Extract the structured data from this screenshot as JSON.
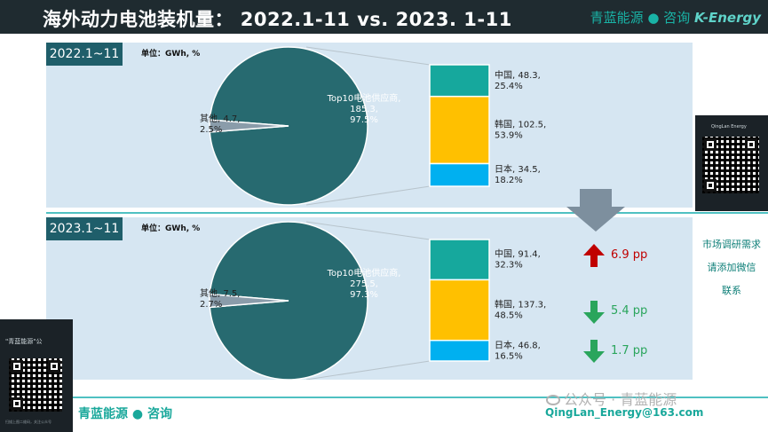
{
  "header": {
    "title": "海外动力电池装机量：  2022.1-11 vs. 2023. 1-11",
    "brand": "青蓝能源 ● 咨询",
    "brand_logo": "K-Energy"
  },
  "chart_data": [
    {
      "type": "pie",
      "period_label": "2022.1~11",
      "unit_note": "单位：GWh, %",
      "slices": [
        {
          "label_line1": "Top10电池供应商,",
          "label_line2": "185.3,",
          "label_line3": "97.5%",
          "value": 185.3,
          "share": 97.5,
          "color": "#276a70"
        },
        {
          "label_line1": "其他, 4.7,",
          "label_line2": "2.5%",
          "value": 4.7,
          "share": 2.5,
          "color": "#8a9caa"
        }
      ],
      "breakdown": [
        {
          "label_line1": "中国, 48.3,",
          "label_line2": "25.4%",
          "value": 48.3,
          "share": 25.4,
          "color": "#16a89d"
        },
        {
          "label_line1": "韩国, 102.5,",
          "label_line2": "53.9%",
          "value": 102.5,
          "share": 53.9,
          "color": "#ffc000"
        },
        {
          "label_line1": "日本, 34.5,",
          "label_line2": "18.2%",
          "value": 34.5,
          "share": 18.2,
          "color": "#00b0f0"
        }
      ]
    },
    {
      "type": "pie",
      "period_label": "2023.1~11",
      "unit_note": "单位：GWh, %",
      "slices": [
        {
          "label_line1": "Top10电池供应商,",
          "label_line2": "275.5,",
          "label_line3": "97.3%",
          "value": 275.5,
          "share": 97.3,
          "color": "#276a70"
        },
        {
          "label_line1": "其他, 7.5,",
          "label_line2": "2.7%",
          "value": 7.5,
          "share": 2.7,
          "color": "#8a9caa"
        }
      ],
      "breakdown": [
        {
          "label_line1": "中国, 91.4,",
          "label_line2": "32.3%",
          "value": 91.4,
          "share": 32.3,
          "color": "#16a89d"
        },
        {
          "label_line1": "韩国, 137.3,",
          "label_line2": "48.5%",
          "value": 137.3,
          "share": 48.5,
          "color": "#ffc000"
        },
        {
          "label_line1": "日本, 46.8,",
          "label_line2": "16.5%",
          "value": 46.8,
          "share": 16.5,
          "color": "#00b0f0"
        }
      ]
    }
  ],
  "changes": [
    {
      "direction": "up",
      "text": "6.9 pp"
    },
    {
      "direction": "down",
      "text": "5.4 pp"
    },
    {
      "direction": "down",
      "text": "1.7 pp"
    }
  ],
  "sidebar": {
    "qr_title": "QingLan Energy",
    "line1": "市场调研需求",
    "line2": "请添加微信",
    "line3": "联系"
  },
  "footer": {
    "qr_title": "\"青蓝能源\"公",
    "qr_note": "扫描上图二维码，关注公众号",
    "brand": "青蓝能源 ● 咨询",
    "watermark": "公众号 · 青蓝能源",
    "email": "QingLan_Energy@163.com"
  }
}
